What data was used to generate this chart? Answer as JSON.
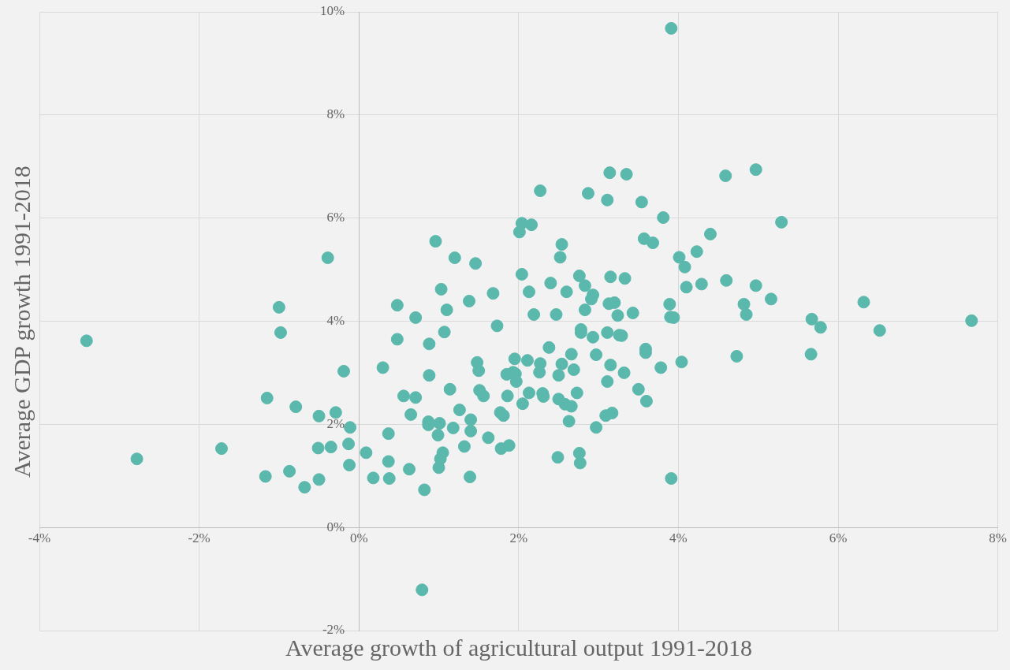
{
  "chart_data": {
    "type": "scatter",
    "xlabel": "Average growth of agricultural output 1991-2018",
    "ylabel": "Average GDP growth 1991-2018",
    "xlim": [
      -4,
      8
    ],
    "ylim": [
      -2,
      10
    ],
    "xticks": [
      {
        "value": -4,
        "label": "-4%"
      },
      {
        "value": -2,
        "label": "-2%"
      },
      {
        "value": 0,
        "label": "0%"
      },
      {
        "value": 2,
        "label": "2%"
      },
      {
        "value": 4,
        "label": "4%"
      },
      {
        "value": 6,
        "label": "6%"
      },
      {
        "value": 8,
        "label": "8%"
      }
    ],
    "yticks": [
      {
        "value": -2,
        "label": "-2%"
      },
      {
        "value": 0,
        "label": "0%"
      },
      {
        "value": 2,
        "label": "2%"
      },
      {
        "value": 4,
        "label": "4%"
      },
      {
        "value": 6,
        "label": "6%"
      },
      {
        "value": 8,
        "label": "8%"
      },
      {
        "value": 10,
        "label": "10%"
      }
    ],
    "grid": true,
    "legend": false,
    "marker": "circle",
    "series": [
      {
        "color": "#5bb8ad",
        "x": [
          -3.41,
          -2.78,
          -1.72,
          -1.15,
          -1.17,
          -1.0,
          -0.98,
          -0.87,
          -0.79,
          -0.68,
          -0.5,
          -0.5,
          -0.51,
          -0.39,
          -0.35,
          -0.29,
          -0.19,
          -0.11,
          -0.13,
          -0.12,
          0.09,
          0.18,
          0.3,
          0.37,
          0.37,
          0.38,
          0.48,
          0.48,
          0.56,
          0.63,
          0.65,
          0.71,
          0.71,
          0.82,
          0.79,
          0.88,
          0.88,
          0.87,
          0.87,
          0.96,
          0.99,
          1.01,
          1.0,
          1.03,
          1.02,
          1.05,
          1.07,
          1.1,
          1.14,
          1.18,
          1.2,
          1.26,
          1.32,
          1.38,
          1.4,
          1.4,
          1.39,
          1.46,
          1.48,
          1.5,
          1.51,
          1.56,
          1.62,
          1.68,
          1.73,
          1.77,
          1.78,
          1.81,
          1.85,
          1.86,
          1.88,
          1.93,
          1.95,
          1.96,
          1.97,
          2.01,
          2.04,
          2.04,
          2.05,
          2.11,
          2.13,
          2.13,
          2.16,
          2.19,
          2.27,
          2.27,
          2.26,
          2.3,
          2.31,
          2.38,
          2.4,
          2.47,
          2.5,
          2.5,
          2.49,
          2.54,
          2.52,
          2.54,
          2.58,
          2.6,
          2.63,
          2.66,
          2.66,
          2.69,
          2.73,
          2.76,
          2.76,
          2.77,
          2.78,
          2.78,
          2.83,
          2.83,
          2.87,
          2.91,
          2.93,
          2.93,
          2.97,
          2.97,
          3.09,
          3.11,
          3.11,
          3.11,
          3.13,
          3.14,
          3.15,
          3.15,
          3.17,
          3.2,
          3.24,
          3.26,
          3.29,
          3.32,
          3.33,
          3.35,
          3.43,
          3.5,
          3.54,
          3.57,
          3.59,
          3.59,
          3.6,
          3.68,
          3.78,
          3.81,
          3.89,
          3.9,
          3.94,
          3.91,
          3.91,
          4.01,
          4.04,
          4.08,
          4.1,
          4.23,
          4.29,
          4.4,
          4.59,
          4.6,
          4.73,
          4.82,
          4.85,
          4.97,
          4.97,
          5.16,
          5.29,
          5.66,
          5.67,
          5.78,
          6.32,
          6.52,
          7.67
        ],
        "values": [
          3.62,
          1.33,
          1.53,
          2.51,
          0.99,
          4.27,
          3.78,
          1.09,
          2.34,
          0.78,
          2.16,
          0.93,
          1.54,
          5.23,
          1.56,
          2.23,
          3.03,
          1.94,
          1.62,
          1.21,
          1.45,
          0.96,
          3.1,
          1.82,
          1.28,
          0.95,
          4.31,
          3.65,
          2.55,
          1.13,
          2.19,
          4.07,
          2.52,
          0.73,
          -1.21,
          3.56,
          2.95,
          2.05,
          1.99,
          5.55,
          1.79,
          2.02,
          1.16,
          4.62,
          1.33,
          1.45,
          3.79,
          4.22,
          2.68,
          1.93,
          5.23,
          2.28,
          1.57,
          4.39,
          2.09,
          1.87,
          0.98,
          5.12,
          3.2,
          3.04,
          2.66,
          2.55,
          1.74,
          4.54,
          3.91,
          2.23,
          1.53,
          2.17,
          2.97,
          2.55,
          1.59,
          3.01,
          3.27,
          2.98,
          2.83,
          5.73,
          5.9,
          4.91,
          2.4,
          3.24,
          4.57,
          2.61,
          5.87,
          4.13,
          6.53,
          3.18,
          3.01,
          2.6,
          2.54,
          3.49,
          4.74,
          4.13,
          2.95,
          2.49,
          1.36,
          5.49,
          5.24,
          3.17,
          2.39,
          4.57,
          2.06,
          2.35,
          3.36,
          3.06,
          2.61,
          4.88,
          1.44,
          1.25,
          3.84,
          3.78,
          4.69,
          4.22,
          6.48,
          4.43,
          4.51,
          3.69,
          3.35,
          1.94,
          2.17,
          6.35,
          3.78,
          2.83,
          4.34,
          6.88,
          4.86,
          3.15,
          2.22,
          4.36,
          4.11,
          3.73,
          3.72,
          3.0,
          4.83,
          6.85,
          4.16,
          2.68,
          6.31,
          5.6,
          3.46,
          3.39,
          2.45,
          5.52,
          3.1,
          6.01,
          4.33,
          4.08,
          4.07,
          9.68,
          0.95,
          5.24,
          3.21,
          5.05,
          4.66,
          5.35,
          4.72,
          5.69,
          6.82,
          4.79,
          3.32,
          4.33,
          4.13,
          6.94,
          4.69,
          4.43,
          5.92,
          3.36,
          4.04,
          3.88,
          4.37,
          3.82,
          4.01
        ]
      }
    ]
  }
}
